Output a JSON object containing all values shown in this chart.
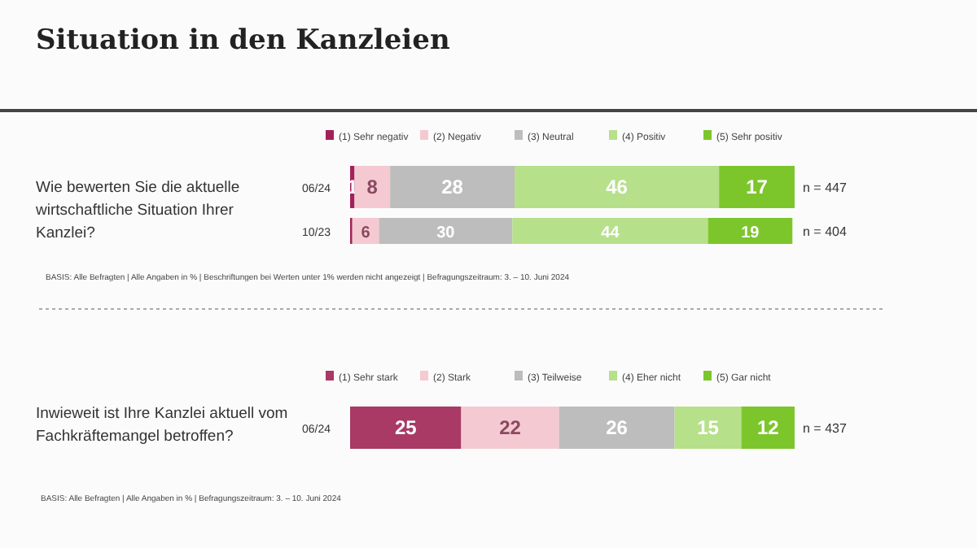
{
  "chart_data": [
    {
      "type": "bar",
      "orientation": "horizontal",
      "stacked": true,
      "title": "Situation in den Kanzleien",
      "ylabel": "Wie bewerten Sie die aktuelle wirtschaftliche Situation Ihrer Kanzlei?",
      "categories": [
        "06/24",
        "10/23"
      ],
      "xlim": [
        0,
        100
      ],
      "tick_labels": "y",
      "legend": "top",
      "series": [
        {
          "name": "(1) Sehr negativ",
          "color": "#a3215a",
          "values": [
            1,
            0.5
          ],
          "value_labels": [
            "1",
            null
          ]
        },
        {
          "name": "(2) Negativ",
          "color": "#f5c9d2",
          "values": [
            8,
            6
          ],
          "value_labels": [
            "8",
            "6"
          ]
        },
        {
          "name": "(3) Neutral",
          "color": "#bdbdbd",
          "values": [
            28,
            30
          ],
          "value_labels": [
            "28",
            "30"
          ]
        },
        {
          "name": "(4) Positiv",
          "color": "#b7e08a",
          "values": [
            46,
            44
          ],
          "value_labels": [
            "46",
            "44"
          ]
        },
        {
          "name": "(5) Sehr positiv",
          "color": "#7cc62c",
          "values": [
            17,
            19
          ],
          "value_labels": [
            "17",
            "19"
          ]
        }
      ],
      "annotations": [
        "n = 447",
        "n = 404",
        "BASIS:  Alle Befragten | Alle Angaben in % | Beschriftungen  bei Werten unter  1% werden nicht angezeigt | Befragungszeitraum: 3. – 10. Juni 2024"
      ]
    },
    {
      "type": "bar",
      "orientation": "horizontal",
      "stacked": true,
      "ylabel": "Inwieweit ist Ihre Kanzlei aktuell vom Fachkräftemangel betroffen?",
      "categories": [
        "06/24"
      ],
      "xlim": [
        0,
        100
      ],
      "tick_labels": "y",
      "legend": "top",
      "data_labels": true,
      "series": [
        {
          "name": "(1) Sehr stark",
          "color": "#a83a65",
          "values": [
            25
          ]
        },
        {
          "name": "(2) Stark",
          "color": "#f5c9d2",
          "values": [
            22
          ]
        },
        {
          "name": "(3) Teilweise",
          "color": "#bdbdbd",
          "values": [
            26
          ]
        },
        {
          "name": "(4) Eher nicht",
          "color": "#b7e08a",
          "values": [
            15
          ]
        },
        {
          "name": "(5) Gar nicht",
          "color": "#7cc62c",
          "values": [
            12
          ]
        }
      ],
      "annotations": [
        "n = 437",
        "BASIS:  Alle Befragten | Alle Angaben in % | Befragungszeitraum: 3. – 10. Juni 2024"
      ]
    }
  ]
}
